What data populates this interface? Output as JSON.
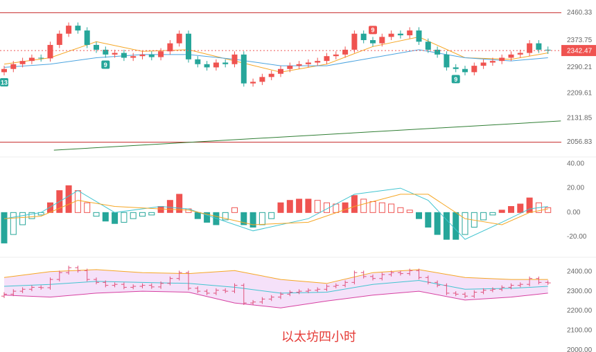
{
  "chart_data": [
    {
      "type": "candlestick",
      "open": [
        2275,
        2285,
        2300,
        2310,
        2320,
        2318,
        2360,
        2395,
        2420,
        2405,
        2360,
        2345,
        2330,
        2335,
        2320,
        2325,
        2330,
        2322,
        2340,
        2365,
        2395,
        2315,
        2300,
        2290,
        2305,
        2300,
        2330,
        2240,
        2245,
        2260,
        2270,
        2285,
        2295,
        2300,
        2305,
        2310,
        2325,
        2330,
        2345,
        2395,
        2375,
        2365,
        2385,
        2395,
        2390,
        2405,
        2370,
        2345,
        2330,
        2290,
        2285,
        2275,
        2295,
        2305,
        2310,
        2320,
        2330,
        2335,
        2365,
        2345
      ],
      "high": [
        2295,
        2310,
        2320,
        2330,
        2330,
        2370,
        2405,
        2430,
        2430,
        2415,
        2370,
        2355,
        2345,
        2345,
        2335,
        2340,
        2340,
        2350,
        2375,
        2405,
        2405,
        2325,
        2310,
        2315,
        2315,
        2340,
        2340,
        2255,
        2270,
        2280,
        2295,
        2305,
        2310,
        2315,
        2320,
        2335,
        2340,
        2355,
        2405,
        2405,
        2385,
        2395,
        2405,
        2405,
        2415,
        2415,
        2380,
        2355,
        2340,
        2300,
        2295,
        2305,
        2315,
        2320,
        2330,
        2340,
        2345,
        2375,
        2375,
        2355
      ],
      "low": [
        2265,
        2275,
        2290,
        2300,
        2308,
        2308,
        2350,
        2385,
        2395,
        2350,
        2335,
        2320,
        2320,
        2310,
        2310,
        2315,
        2312,
        2312,
        2330,
        2355,
        2305,
        2290,
        2280,
        2280,
        2290,
        2290,
        2230,
        2230,
        2235,
        2250,
        2260,
        2275,
        2285,
        2290,
        2295,
        2300,
        2315,
        2320,
        2335,
        2365,
        2355,
        2355,
        2375,
        2380,
        2380,
        2360,
        2335,
        2320,
        2280,
        2275,
        2265,
        2265,
        2285,
        2295,
        2300,
        2310,
        2320,
        2325,
        2335,
        2332
      ],
      "close": [
        2285,
        2300,
        2310,
        2320,
        2318,
        2360,
        2395,
        2420,
        2405,
        2360,
        2345,
        2330,
        2335,
        2320,
        2325,
        2330,
        2322,
        2340,
        2365,
        2395,
        2315,
        2300,
        2290,
        2305,
        2300,
        2330,
        2240,
        2245,
        2260,
        2270,
        2285,
        2295,
        2300,
        2305,
        2310,
        2325,
        2330,
        2345,
        2395,
        2375,
        2365,
        2385,
        2395,
        2390,
        2405,
        2370,
        2345,
        2330,
        2290,
        2285,
        2275,
        2295,
        2305,
        2310,
        2320,
        2330,
        2335,
        2365,
        2345,
        2342.47
      ],
      "up_color": "#ef5350",
      "down_color": "#26a69a",
      "level_color": "#c62828",
      "ylim": [
        2015,
        2500
      ],
      "yticks": [
        2460.33,
        2373.75,
        2290.21,
        2209.61,
        2131.85,
        2056.83
      ],
      "series": [
        {
          "color": "#f5a623",
          "x": [
            0,
            5,
            10,
            15,
            20,
            25,
            30,
            35,
            40,
            45,
            50,
            55,
            59
          ],
          "values": [
            2300,
            2320,
            2370,
            2340,
            2345,
            2310,
            2275,
            2300,
            2355,
            2385,
            2320,
            2315,
            2335
          ]
        },
        {
          "color": "#4aa3df",
          "x": [
            0,
            5,
            10,
            15,
            20,
            25,
            30,
            35,
            40,
            45,
            50,
            55,
            59
          ],
          "values": [
            2290,
            2300,
            2320,
            2330,
            2330,
            2315,
            2295,
            2295,
            2320,
            2345,
            2320,
            2310,
            2320
          ]
        },
        {
          "color": "#2e7d32",
          "x": [
            5.4,
            60.4
          ],
          "values": [
            2032,
            2123
          ]
        }
      ],
      "annotations": [
        {
          "text": "13",
          "x": 0,
          "color": "#26a69a",
          "side": "below"
        },
        {
          "text": "9",
          "x": 11,
          "color": "#26a69a",
          "side": "below"
        },
        {
          "text": "9",
          "x": 40,
          "color": "#ef5350",
          "side": "above"
        },
        {
          "text": "9",
          "x": 49,
          "color": "#26a69a",
          "side": "below"
        }
      ]
    },
    {
      "type": "macd",
      "values": [
        -25,
        -18,
        -10,
        -5,
        -2,
        8,
        18,
        22,
        18,
        8,
        -3,
        -7,
        -9,
        -8,
        -5,
        -3,
        -2,
        5,
        10,
        15,
        3,
        -5,
        -8,
        -10,
        -6,
        4,
        -10,
        -12,
        -10,
        -5,
        8,
        10,
        11,
        11,
        10,
        8,
        7,
        8,
        14,
        11,
        9,
        8,
        7,
        4,
        2,
        -5,
        -12,
        -18,
        -22,
        -22,
        -18,
        -12,
        -6,
        -2,
        2,
        5,
        7,
        12,
        8,
        4
      ],
      "up_color": "#ef5350",
      "down_color": "#26a69a",
      "ylim": [
        -31,
        45
      ],
      "yticks": [
        {
          "value": 40,
          "label": "40.00"
        },
        {
          "value": 20,
          "label": "20.00"
        },
        {
          "value": 0,
          "label": "0.00"
        },
        {
          "value": -20,
          "label": "-20.00"
        }
      ],
      "series": [
        {
          "color": "#40c4d0",
          "x": [
            0,
            4,
            8,
            12,
            17,
            20,
            27,
            33,
            38,
            43,
            46,
            50,
            54,
            57,
            59
          ],
          "values": [
            -5,
            0,
            18,
            0,
            5,
            3,
            -15,
            -5,
            15,
            20,
            10,
            -22,
            -8,
            3,
            5
          ]
        },
        {
          "color": "#f5a623",
          "x": [
            0,
            4,
            8,
            12,
            17,
            20,
            27,
            33,
            38,
            43,
            46,
            50,
            54,
            57,
            59
          ],
          "values": [
            -5,
            -3,
            10,
            5,
            3,
            2,
            -10,
            -8,
            5,
            15,
            15,
            -5,
            -10,
            0,
            3
          ]
        }
      ]
    },
    {
      "type": "bollinger",
      "title": "以太坊四小时",
      "ylim": [
        1990,
        2445
      ],
      "yticks": [
        {
          "value": 2400,
          "label": "2400.00"
        },
        {
          "value": 2300,
          "label": "2300.00"
        },
        {
          "value": 2200,
          "label": "2200.00"
        },
        {
          "value": 2100,
          "label": "2100.00"
        },
        {
          "value": 2000,
          "label": "2000.00"
        }
      ],
      "band_color": "#f3d9f7",
      "candle_color": "#e0507a",
      "series": [
        {
          "color": "#f5a623",
          "x": [
            0,
            5,
            10,
            15,
            20,
            25,
            30,
            35,
            40,
            45,
            50,
            55,
            59
          ],
          "values": [
            2370,
            2400,
            2410,
            2395,
            2390,
            2405,
            2360,
            2340,
            2395,
            2410,
            2370,
            2360,
            2360
          ]
        },
        {
          "color": "#40c4d0",
          "x": [
            0,
            5,
            10,
            15,
            20,
            25,
            30,
            35,
            40,
            45,
            50,
            55,
            59
          ],
          "values": [
            2325,
            2335,
            2350,
            2345,
            2340,
            2320,
            2290,
            2295,
            2335,
            2355,
            2310,
            2315,
            2325
          ]
        },
        {
          "color": "#d63fa0",
          "x": [
            0,
            5,
            10,
            15,
            20,
            25,
            30,
            35,
            40,
            45,
            50,
            55,
            59
          ],
          "values": [
            2280,
            2270,
            2290,
            2300,
            2295,
            2240,
            2215,
            2250,
            2280,
            2300,
            2255,
            2270,
            2290
          ]
        }
      ]
    }
  ]
}
